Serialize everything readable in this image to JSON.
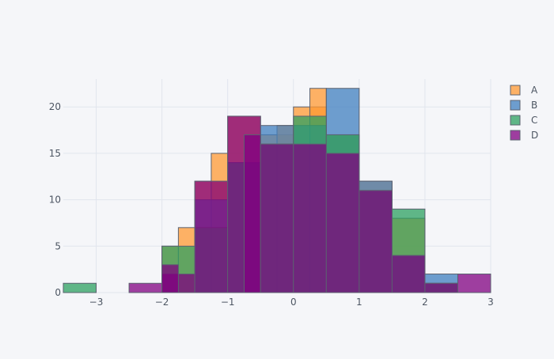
{
  "chart_data": {
    "type": "histogram",
    "barmode": "overlay",
    "title": "",
    "xlabel": "",
    "ylabel": "",
    "xlim": [
      -3.5,
      3
    ],
    "ylim": [
      0,
      23
    ],
    "bin_width": 0.5,
    "grid": true,
    "legend_position": "top-right",
    "xticks": [
      -3,
      -2,
      -1,
      0,
      1,
      2,
      3
    ],
    "yticks": [
      0,
      5,
      10,
      15,
      20
    ],
    "bin_starts": [
      -3.5,
      -3.0,
      -2.5,
      -2.0,
      -1.5,
      -1.0,
      -0.5,
      0.0,
      0.5,
      1.0,
      1.5,
      2.0,
      2.5
    ],
    "series": [
      {
        "name": "A",
        "color": "#ff9933",
        "values": [
          0,
          0,
          0,
          0,
          0,
          0,
          0,
          0,
          0,
          0,
          0,
          0,
          0
        ]
      },
      {
        "name": "B",
        "color": "#3f7fbf",
        "values": [
          0,
          0,
          0,
          0,
          0,
          0,
          0,
          0,
          0,
          0,
          0,
          0,
          0
        ]
      },
      {
        "name": "C",
        "color": "#2ca060",
        "values": [
          0,
          0,
          0,
          0,
          0,
          0,
          0,
          0,
          0,
          0,
          0,
          0,
          0
        ]
      },
      {
        "name": "D",
        "color": "#800080",
        "values": [
          0,
          0,
          0,
          0,
          0,
          0,
          0,
          0,
          0,
          0,
          0,
          0,
          0
        ]
      }
    ],
    "bars": [
      {
        "series": "A",
        "x0": -2.0,
        "x1": -1.75,
        "y": 5
      },
      {
        "series": "A",
        "x0": -1.75,
        "x1": -1.5,
        "y": 7
      },
      {
        "series": "A",
        "x0": -1.5,
        "x1": -1.0,
        "y": 12
      },
      {
        "series": "A",
        "x0": -1.25,
        "x1": -1.0,
        "y": 15
      },
      {
        "series": "A",
        "x0": -1.0,
        "x1": -0.5,
        "y": 19
      },
      {
        "series": "A",
        "x0": -0.5,
        "x1": 0.0,
        "y": 17
      },
      {
        "series": "A",
        "x0": -0.25,
        "x1": 0.0,
        "y": 18
      },
      {
        "series": "A",
        "x0": 0.0,
        "x1": 0.5,
        "y": 20
      },
      {
        "series": "A",
        "x0": 0.25,
        "x1": 0.5,
        "y": 22
      },
      {
        "series": "A",
        "x0": 0.5,
        "x1": 1.0,
        "y": 17
      },
      {
        "series": "A",
        "x0": 1.0,
        "x1": 1.5,
        "y": 12
      },
      {
        "series": "A",
        "x0": 1.5,
        "x1": 2.0,
        "y": 8
      },
      {
        "series": "A",
        "x0": 2.0,
        "x1": 2.5,
        "y": 1
      },
      {
        "series": "B",
        "x0": -1.5,
        "x1": -1.0,
        "y": 10
      },
      {
        "series": "B",
        "x0": -1.0,
        "x1": -0.5,
        "y": 14
      },
      {
        "series": "B",
        "x0": -0.5,
        "x1": 0.0,
        "y": 18
      },
      {
        "series": "B",
        "x0": 0.0,
        "x1": 0.5,
        "y": 18
      },
      {
        "series": "B",
        "x0": 0.5,
        "x1": 1.0,
        "y": 22
      },
      {
        "series": "B",
        "x0": 1.0,
        "x1": 1.5,
        "y": 12
      },
      {
        "series": "B",
        "x0": 1.5,
        "x1": 2.0,
        "y": 4
      },
      {
        "series": "B",
        "x0": 2.0,
        "x1": 2.5,
        "y": 2
      },
      {
        "series": "C",
        "x0": -3.5,
        "x1": -3.0,
        "y": 1
      },
      {
        "series": "C",
        "x0": -2.0,
        "x1": -1.5,
        "y": 5
      },
      {
        "series": "C",
        "x0": -1.5,
        "x1": -1.0,
        "y": 7
      },
      {
        "series": "C",
        "x0": -1.0,
        "x1": -0.5,
        "y": 14
      },
      {
        "series": "C",
        "x0": -0.5,
        "x1": 0.0,
        "y": 16
      },
      {
        "series": "C",
        "x0": 0.0,
        "x1": 0.5,
        "y": 19
      },
      {
        "series": "C",
        "x0": 0.5,
        "x1": 1.0,
        "y": 17
      },
      {
        "series": "C",
        "x0": 1.0,
        "x1": 1.5,
        "y": 11
      },
      {
        "series": "C",
        "x0": 1.5,
        "x1": 2.0,
        "y": 9
      },
      {
        "series": "C",
        "x0": 2.0,
        "x1": 2.5,
        "y": 1
      },
      {
        "series": "D",
        "x0": -2.5,
        "x1": -2.0,
        "y": 1
      },
      {
        "series": "D",
        "x0": -2.0,
        "x1": -1.5,
        "y": 2
      },
      {
        "series": "D",
        "x0": -2.0,
        "x1": -1.75,
        "y": 3
      },
      {
        "series": "D",
        "x0": -1.5,
        "x1": -1.0,
        "y": 12
      },
      {
        "series": "D",
        "x0": -1.0,
        "x1": -0.5,
        "y": 19
      },
      {
        "series": "D",
        "x0": -0.75,
        "x1": -0.5,
        "y": 17
      },
      {
        "series": "D",
        "x0": -0.5,
        "x1": 0.0,
        "y": 16
      },
      {
        "series": "D",
        "x0": 0.0,
        "x1": 0.5,
        "y": 16
      },
      {
        "series": "D",
        "x0": 0.5,
        "x1": 1.0,
        "y": 15
      },
      {
        "series": "D",
        "x0": 1.0,
        "x1": 1.5,
        "y": 11
      },
      {
        "series": "D",
        "x0": 1.5,
        "x1": 2.0,
        "y": 4
      },
      {
        "series": "D",
        "x0": 2.0,
        "x1": 2.5,
        "y": 1
      },
      {
        "series": "D",
        "x0": 2.5,
        "x1": 3.0,
        "y": 2
      }
    ]
  }
}
